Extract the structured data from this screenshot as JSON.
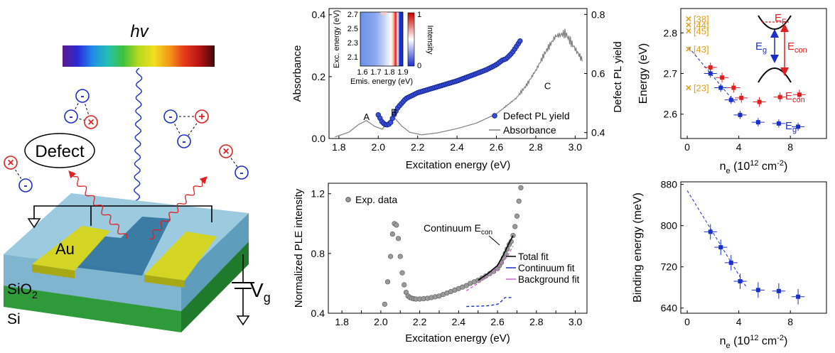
{
  "device": {
    "hv_label": "hv",
    "defect_label": "Defect",
    "au_label": "Au",
    "sio2_label": "SiO",
    "sio2_sub": "2",
    "si_label": "Si",
    "vg_label": "V",
    "vg_sub": "g",
    "minus_sign": "-",
    "plus_sign": "+",
    "cross_sign": "×",
    "spectrum_colors": [
      "#5a1a8c",
      "#2a2ad8",
      "#1f8fe6",
      "#22c0b0",
      "#3fc23a",
      "#b8d820",
      "#f0e020",
      "#f49a18",
      "#e53a18",
      "#b81414",
      "#400808"
    ]
  },
  "chart_data": [
    {
      "id": "absorbance",
      "type": "line",
      "xlabel": "Excitation energy (eV)",
      "ylabel": "Absorbance",
      "y2label": "Defect PL yield",
      "xlim": [
        1.75,
        3.06
      ],
      "ylim": [
        0,
        0.42
      ],
      "y2lim": [
        0.38,
        0.82
      ],
      "xticks": [
        "1.8",
        "2.0",
        "2.2",
        "2.4",
        "2.6",
        "2.8",
        "3.0"
      ],
      "yticks": [
        "0.0",
        "0.2",
        "0.4"
      ],
      "y2ticks": [
        "0.4",
        "0.6",
        "0.8"
      ],
      "peak_labels": [
        {
          "text": "A",
          "x": 1.94,
          "y": 0.06
        },
        {
          "text": "B",
          "x": 2.08,
          "y": 0.075
        },
        {
          "text": "C",
          "x": 2.86,
          "y": 0.16
        }
      ],
      "series": [
        {
          "name": "Absorbance",
          "color": "#808080",
          "x": [
            1.78,
            1.85,
            1.9,
            1.94,
            1.98,
            2.02,
            2.05,
            2.08,
            2.12,
            2.16,
            2.22,
            2.3,
            2.4,
            2.5,
            2.6,
            2.7,
            2.75,
            2.8,
            2.85,
            2.9,
            2.95,
            3.0,
            3.04
          ],
          "y": [
            0.005,
            0.02,
            0.045,
            0.058,
            0.04,
            0.03,
            0.055,
            0.068,
            0.04,
            0.02,
            0.012,
            0.018,
            0.032,
            0.05,
            0.08,
            0.13,
            0.17,
            0.22,
            0.28,
            0.33,
            0.34,
            0.29,
            0.25
          ]
        },
        {
          "name": "Defect PL yield",
          "color": "#1a2ecc",
          "x": [
            2.0,
            2.02,
            2.04,
            2.06,
            2.08,
            2.1,
            2.14,
            2.2,
            2.3,
            2.4,
            2.5,
            2.55,
            2.6,
            2.63,
            2.65,
            2.68,
            2.7,
            2.72
          ],
          "y2": [
            0.46,
            0.435,
            0.425,
            0.43,
            0.46,
            0.485,
            0.515,
            0.535,
            0.555,
            0.575,
            0.6,
            0.613,
            0.63,
            0.645,
            0.65,
            0.67,
            0.69,
            0.71
          ]
        }
      ],
      "legend": [
        "Defect PL yield",
        "Absorbance"
      ],
      "legend_position": "bottom-right",
      "inset": {
        "type": "heatmap",
        "xlabel": "Emis. energy (eV)",
        "ylabel": "Exc. energy (eV)",
        "colorbar_label": "Intensity",
        "xticks": [
          "1.6",
          "1.7",
          "1.8",
          "1.9"
        ],
        "yticks": [
          "2.7",
          "2.5",
          "2.3",
          "2.1"
        ],
        "colorbar_ticks": [
          "1",
          "0"
        ]
      }
    },
    {
      "id": "ple",
      "type": "scatter",
      "xlabel": "Excitation energy (eV)",
      "ylabel": "Normalized PLE intensity",
      "xlim": [
        1.73,
        3.06
      ],
      "ylim": [
        0.4,
        1.27
      ],
      "xticks": [
        "1.8",
        "1.9",
        "2.0",
        "2.1",
        "2.2",
        "2.3",
        "2.4",
        "2.5",
        "2.6",
        "2.7",
        "2.8",
        "2.9",
        "3.0"
      ],
      "xtick_labels": [
        "1.8",
        "2.0",
        "2.2",
        "2.4",
        "2.6",
        "2.8",
        "3.0"
      ],
      "yticks": [
        "0.4",
        "0.8",
        "1.2"
      ],
      "annotation": "Continuum E",
      "annotation_sub": "con",
      "series": [
        {
          "name": "Exp. data",
          "color": "#8c8c8c",
          "x": [
            2.02,
            2.035,
            2.05,
            2.06,
            2.07,
            2.08,
            2.09,
            2.1,
            2.11,
            2.12,
            2.13,
            2.14,
            2.15,
            2.16,
            2.17,
            2.18,
            2.2,
            2.22,
            2.24,
            2.26,
            2.28,
            2.3,
            2.32,
            2.34,
            2.36,
            2.38,
            2.4,
            2.42,
            2.44,
            2.46,
            2.48,
            2.5,
            2.52,
            2.54,
            2.56,
            2.58,
            2.6,
            2.61,
            2.62,
            2.63,
            2.64,
            2.65,
            2.66,
            2.67,
            2.68,
            2.69,
            2.7,
            2.71,
            2.72
          ],
          "y": [
            0.46,
            0.61,
            0.78,
            0.93,
            1.0,
            0.99,
            0.9,
            0.78,
            0.67,
            0.59,
            0.54,
            0.515,
            0.505,
            0.5,
            0.497,
            0.495,
            0.495,
            0.497,
            0.5,
            0.505,
            0.51,
            0.515,
            0.525,
            0.535,
            0.545,
            0.555,
            0.565,
            0.575,
            0.585,
            0.6,
            0.61,
            0.62,
            0.635,
            0.65,
            0.665,
            0.68,
            0.7,
            0.72,
            0.74,
            0.77,
            0.8,
            0.83,
            0.86,
            0.88,
            0.92,
            0.98,
            1.05,
            1.15,
            1.24
          ]
        },
        {
          "name": "Total fit",
          "color": "#000000",
          "x": [
            2.5,
            2.55,
            2.6,
            2.63,
            2.66,
            2.68
          ],
          "y": [
            0.62,
            0.665,
            0.72,
            0.79,
            0.87,
            0.92
          ]
        },
        {
          "name": "Continuum fit",
          "color": "#1a2ecc",
          "x": [
            2.44,
            2.5,
            2.55,
            2.6,
            2.62,
            2.63,
            2.64,
            2.66,
            2.68
          ],
          "y": [
            0.445,
            0.447,
            0.45,
            0.46,
            0.48,
            0.495,
            0.505,
            0.505,
            0.505
          ]
        },
        {
          "name": "Background fit",
          "color": "#cc66cc",
          "x": [
            2.44,
            2.5,
            2.55,
            2.6,
            2.65,
            2.68
          ],
          "y": [
            0.55,
            0.6,
            0.645,
            0.7,
            0.78,
            0.85
          ]
        }
      ],
      "legend": [
        "Total fit",
        "Continuum fit",
        "Background fit"
      ],
      "legend2": [
        "Exp. data"
      ]
    },
    {
      "id": "energy",
      "type": "scatter",
      "xlabel": "n",
      "xlabel_sub": "e",
      "xlabel_unit": "(10",
      "xlabel_sup": "12",
      "xlabel_unit2": "cm",
      "xlabel_sup2": "-2",
      "xlabel_close": ")",
      "ylabel": "Energy (eV)",
      "xlim": [
        -0.5,
        10.8
      ],
      "ylim": [
        2.54,
        2.86
      ],
      "xticks": [
        "0",
        "4",
        "8"
      ],
      "yticks": [
        "2.6",
        "2.7",
        "2.8"
      ],
      "references": [
        {
          "text": "[38]",
          "x": 0.1,
          "y": 2.835
        },
        {
          "text": "[44]",
          "x": 0.1,
          "y": 2.82
        },
        {
          "text": "[45]",
          "x": 0.1,
          "y": 2.805
        },
        {
          "text": "[43]",
          "x": 0.1,
          "y": 2.76
        },
        {
          "text": "[23]",
          "x": 0.1,
          "y": 2.665
        }
      ],
      "series": [
        {
          "name": "E",
          "name_sub": "con",
          "color": "#e02020",
          "x": [
            1.8,
            2.7,
            3.6,
            4.2,
            5.6,
            7.2,
            8.7
          ],
          "y": [
            2.715,
            2.69,
            2.665,
            2.64,
            2.63,
            2.642,
            2.648
          ],
          "xerr": 0.5,
          "yerr": 0.012
        },
        {
          "name": "E",
          "name_sub": "g",
          "color": "#1a2ecc",
          "x": [
            1.8,
            2.6,
            3.4,
            4.1,
            5.5,
            7.1,
            8.6
          ],
          "y": [
            2.7,
            2.665,
            2.635,
            2.598,
            2.58,
            2.577,
            2.569
          ],
          "xerr": 0.5,
          "yerr": 0.01
        }
      ],
      "inset_labels": {
        "ef": "E",
        "ef_sub": "F",
        "eg": "E",
        "eg_sub": "g",
        "econ": "E",
        "econ_sub": "con"
      }
    },
    {
      "id": "binding",
      "type": "scatter",
      "xlabel": "n",
      "xlabel_sub": "e",
      "xlabel_unit": "(10",
      "xlabel_sup": "12",
      "xlabel_unit2": "cm",
      "xlabel_sup2": "-2",
      "xlabel_close": ")",
      "ylabel": "Binding energy (meV)",
      "xlim": [
        -0.5,
        10.8
      ],
      "ylim": [
        630,
        885
      ],
      "xticks": [
        "0",
        "4",
        "8"
      ],
      "yticks": [
        "640",
        "720",
        "800",
        "880"
      ],
      "series": [
        {
          "name": "",
          "color": "#1a2ecc",
          "x": [
            1.8,
            2.6,
            3.4,
            4.1,
            5.5,
            7.1,
            8.6
          ],
          "y": [
            788,
            758,
            728,
            692,
            675,
            673,
            662
          ],
          "xerr": 0.5,
          "yerr": 15
        }
      ],
      "fit": {
        "x": [
          0,
          4.6
        ],
        "y": [
          868,
          680
        ]
      }
    }
  ]
}
